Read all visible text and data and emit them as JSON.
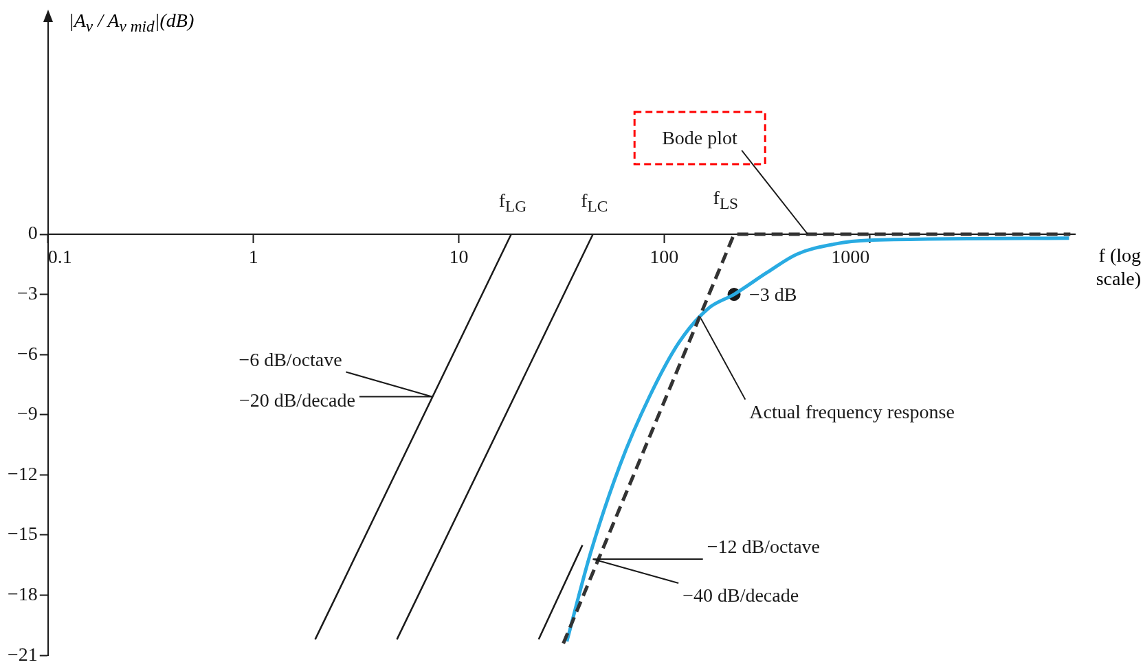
{
  "chart_data": {
    "type": "line",
    "xlabel": "f (log scale)",
    "ylabel": "|A$_{v}$ / A$_{v mid}$|(dB)",
    "log": "x",
    "xlim": [
      0.1,
      10000
    ],
    "xticks": [
      0.1,
      1,
      10,
      100,
      1000
    ],
    "ylim": [
      -21,
      11
    ],
    "yticks": [
      {
        "value": 0,
        "label": "0"
      },
      {
        "value": -3,
        "label": "−3"
      },
      {
        "value": -6,
        "label": "−6"
      },
      {
        "value": -9,
        "label": "−9"
      },
      {
        "value": -12,
        "label": "−12"
      },
      {
        "value": -15,
        "label": "−15"
      },
      {
        "value": -18,
        "label": "−18"
      },
      {
        "value": -21,
        "label": "−21"
      }
    ],
    "grid": false,
    "marker": "none",
    "series": [
      {
        "color": "#1a1a1a",
        "line_style": "solid",
        "x": [
          2.0,
          18
        ],
        "values": [
          -20.2,
          0
        ]
      },
      {
        "color": "#1a1a1a",
        "line_style": "solid",
        "x": [
          5.0,
          45
        ],
        "values": [
          -20.2,
          0
        ]
      },
      {
        "color": "#1a1a1a",
        "line_style": "solid",
        "x": [
          24.5,
          40
        ],
        "values": [
          -20.2,
          -15.5
        ]
      },
      {
        "color": "#333333",
        "line_style": "dashed",
        "x": [
          32.3,
          219,
          9500
        ],
        "values": [
          -20.4,
          0,
          0
        ]
      },
      {
        "color": "#29abe2",
        "line_style": "solid",
        "x": [
          33.6,
          43.8,
          61,
          84.8,
          118,
          164,
          219,
          318,
          442,
          667,
          1000,
          9360
        ],
        "values": [
          -20.3,
          -15.9,
          -11.5,
          -8.1,
          -5.4,
          -3.7,
          -3,
          -1.9,
          -1.0,
          -0.5,
          -0.3,
          -0.2
        ]
      },
      {
        "type": "scatter",
        "marker": "circle",
        "color": "#1a1a1a",
        "x": [
          219
        ],
        "values": [
          -3
        ]
      }
    ],
    "annotations": [
      {
        "text": "Bode plot",
        "x": 500,
        "y": 0
      },
      {
        "text": "f$_{LG}$",
        "x": 18,
        "y": 0
      },
      {
        "text": "f$_{LC}$",
        "x": 45,
        "y": 0
      },
      {
        "text": "f$_{LS}$",
        "x": 219,
        "y": 0
      },
      {
        "text": "−3 dB",
        "x": 219,
        "y": -3
      },
      {
        "text": "−6 dB/octave",
        "x": 7.4,
        "y": -8.1
      },
      {
        "text": "−20 dB/decade",
        "x": 7.4,
        "y": -8.1
      },
      {
        "text": "Actual frequency response",
        "x": 151,
        "y": -4.2
      },
      {
        "text": "−12 dB/octave",
        "x": 45,
        "y": -16.2
      },
      {
        "text": "−40 dB/decade",
        "x": 45,
        "y": -16.2
      }
    ]
  }
}
